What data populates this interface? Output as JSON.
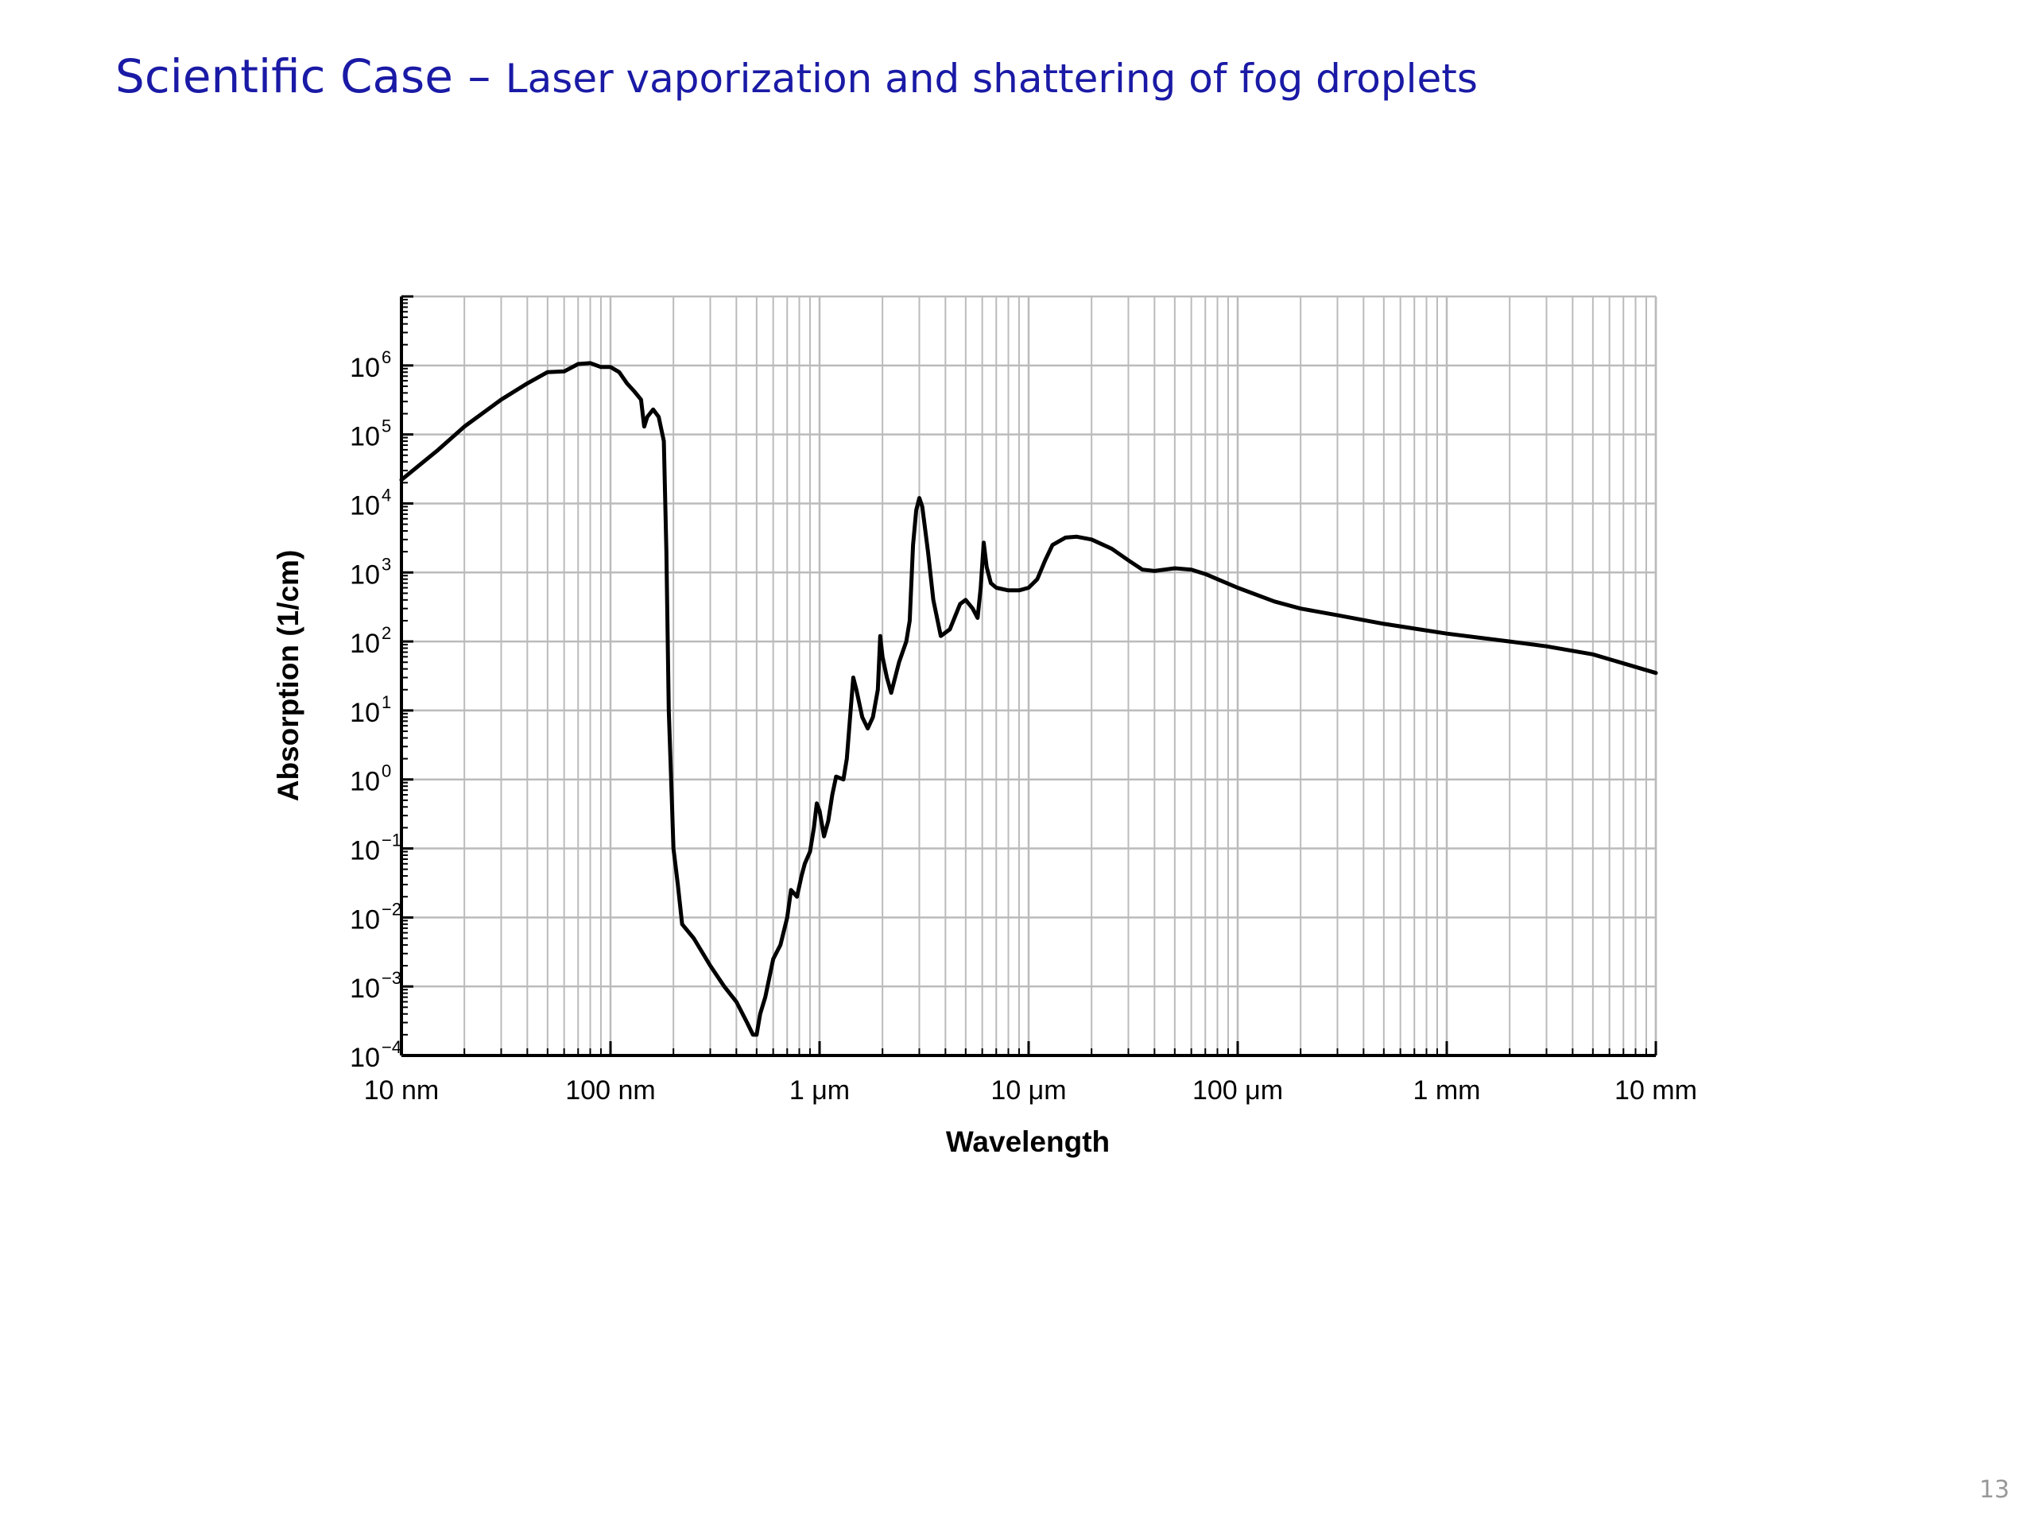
{
  "slide": {
    "title_main": "Scientific Case",
    "title_dash": " – ",
    "title_sub": "Laser vaporization and shattering of fog droplets",
    "page_number": "13",
    "title_color": "#1a1aa6"
  },
  "chart_data": {
    "type": "line",
    "xscale": "log",
    "yscale": "log",
    "xlabel": "Wavelength",
    "ylabel": "Absorption (1/cm)",
    "xlim_m": [
      1e-08,
      0.01
    ],
    "ylim": [
      0.0001,
      10000000.0
    ],
    "grid": true,
    "x_ticks": [
      {
        "value_m": 1e-08,
        "label": "10 nm"
      },
      {
        "value_m": 1e-07,
        "label": "100 nm"
      },
      {
        "value_m": 1e-06,
        "label": "1 μm"
      },
      {
        "value_m": 1e-05,
        "label": "10 μm"
      },
      {
        "value_m": 0.0001,
        "label": "100 μm"
      },
      {
        "value_m": 0.001,
        "label": "1 mm"
      },
      {
        "value_m": 0.01,
        "label": "10 mm"
      }
    ],
    "y_ticks": [
      {
        "value": 0.0001,
        "base": "10",
        "exp": "−4"
      },
      {
        "value": 0.001,
        "base": "10",
        "exp": "−3"
      },
      {
        "value": 0.01,
        "base": "10",
        "exp": "−2"
      },
      {
        "value": 0.1,
        "base": "10",
        "exp": "−1"
      },
      {
        "value": 1.0,
        "base": "10",
        "exp": "0"
      },
      {
        "value": 10.0,
        "base": "10",
        "exp": "1"
      },
      {
        "value": 100.0,
        "base": "10",
        "exp": "2"
      },
      {
        "value": 1000.0,
        "base": "10",
        "exp": "3"
      },
      {
        "value": 10000.0,
        "base": "10",
        "exp": "4"
      },
      {
        "value": 100000.0,
        "base": "10",
        "exp": "5"
      },
      {
        "value": 1000000.0,
        "base": "10",
        "exp": "6"
      }
    ],
    "series": [
      {
        "line_color": "#000000",
        "points": [
          [
            1e-08,
            22000.0
          ],
          [
            1.5e-08,
            60000.0
          ],
          [
            2e-08,
            130000.0
          ],
          [
            3e-08,
            320000.0
          ],
          [
            4e-08,
            550000.0
          ],
          [
            5e-08,
            800000.0
          ],
          [
            6e-08,
            820000.0
          ],
          [
            7e-08,
            1050000.0
          ],
          [
            8e-08,
            1080000.0
          ],
          [
            9e-08,
            950000.0
          ],
          [
            1e-07,
            950000.0
          ],
          [
            1.1e-07,
            800000.0
          ],
          [
            1.2e-07,
            550000.0
          ],
          [
            1.3e-07,
            420000.0
          ],
          [
            1.4e-07,
            320000.0
          ],
          [
            1.45e-07,
            130000.0
          ],
          [
            1.5e-07,
            180000.0
          ],
          [
            1.6e-07,
            230000.0
          ],
          [
            1.7e-07,
            180000.0
          ],
          [
            1.8e-07,
            80000.0
          ],
          [
            1.85e-07,
            2000.0
          ],
          [
            1.9e-07,
            10.0
          ],
          [
            1.95e-07,
            1.0
          ],
          [
            2e-07,
            0.1
          ],
          [
            2.1e-07,
            0.03
          ],
          [
            2.2e-07,
            0.008
          ],
          [
            2.5e-07,
            0.005
          ],
          [
            3e-07,
            0.002
          ],
          [
            3.5e-07,
            0.001
          ],
          [
            4e-07,
            0.0006
          ],
          [
            4.5e-07,
            0.0003
          ],
          [
            4.8e-07,
            0.0002
          ],
          [
            5e-07,
            0.0002
          ],
          [
            5.2e-07,
            0.0004
          ],
          [
            5.5e-07,
            0.0007
          ],
          [
            6e-07,
            0.0025
          ],
          [
            6.5e-07,
            0.004
          ],
          [
            7e-07,
            0.01
          ],
          [
            7.3e-07,
            0.025
          ],
          [
            7.8e-07,
            0.02
          ],
          [
            8.2e-07,
            0.04
          ],
          [
            8.5e-07,
            0.06
          ],
          [
            9e-07,
            0.09
          ],
          [
            9.4e-07,
            0.2
          ],
          [
            9.7e-07,
            0.45
          ],
          [
            1e-06,
            0.35
          ],
          [
            1.05e-06,
            0.15
          ],
          [
            1.1e-06,
            0.25
          ],
          [
            1.15e-06,
            0.6
          ],
          [
            1.2e-06,
            1.1
          ],
          [
            1.3e-06,
            1.0
          ],
          [
            1.35e-06,
            2.0
          ],
          [
            1.4e-06,
            8.0
          ],
          [
            1.45e-06,
            30.0
          ],
          [
            1.5e-06,
            20.0
          ],
          [
            1.6e-06,
            8.0
          ],
          [
            1.7e-06,
            5.5
          ],
          [
            1.8e-06,
            8.0
          ],
          [
            1.9e-06,
            20.0
          ],
          [
            1.95e-06,
            120.0
          ],
          [
            2e-06,
            60.0
          ],
          [
            2.1e-06,
            30.0
          ],
          [
            2.2e-06,
            18.0
          ],
          [
            2.4e-06,
            50.0
          ],
          [
            2.6e-06,
            100.0
          ],
          [
            2.7e-06,
            200.0
          ],
          [
            2.8e-06,
            2500.0
          ],
          [
            2.9e-06,
            8000.0
          ],
          [
            3e-06,
            12000.0
          ],
          [
            3.1e-06,
            9000.0
          ],
          [
            3.3e-06,
            2000.0
          ],
          [
            3.5e-06,
            400.0
          ],
          [
            3.8e-06,
            120.0
          ],
          [
            4.2e-06,
            150.0
          ],
          [
            4.7e-06,
            350.0
          ],
          [
            5e-06,
            400.0
          ],
          [
            5.4e-06,
            300.0
          ],
          [
            5.7e-06,
            220.0
          ],
          [
            5.9e-06,
            600.0
          ],
          [
            6.1e-06,
            2700.0
          ],
          [
            6.3e-06,
            1200.0
          ],
          [
            6.6e-06,
            700.0
          ],
          [
            7e-06,
            600.0
          ],
          [
            8e-06,
            550.0
          ],
          [
            9e-06,
            550.0
          ],
          [
            1e-05,
            600.0
          ],
          [
            1.1e-05,
            800.0
          ],
          [
            1.2e-05,
            1500.0
          ],
          [
            1.3e-05,
            2500.0
          ],
          [
            1.5e-05,
            3200.0
          ],
          [
            1.7e-05,
            3300.0
          ],
          [
            2e-05,
            3000.0
          ],
          [
            2.5e-05,
            2200.0
          ],
          [
            3e-05,
            1500.0
          ],
          [
            3.5e-05,
            1100.0
          ],
          [
            4e-05,
            1050.0
          ],
          [
            5e-05,
            1150.0
          ],
          [
            6e-05,
            1100.0
          ],
          [
            7e-05,
            950.0
          ],
          [
            0.0001,
            600.0
          ],
          [
            0.00015,
            380.0
          ],
          [
            0.0002,
            300.0
          ],
          [
            0.0003,
            240.0
          ],
          [
            0.0005,
            180.0
          ],
          [
            0.001,
            130.0
          ],
          [
            0.002,
            100.0
          ],
          [
            0.003,
            85.0
          ],
          [
            0.005,
            65.0
          ],
          [
            0.01,
            35.0
          ]
        ]
      }
    ]
  }
}
